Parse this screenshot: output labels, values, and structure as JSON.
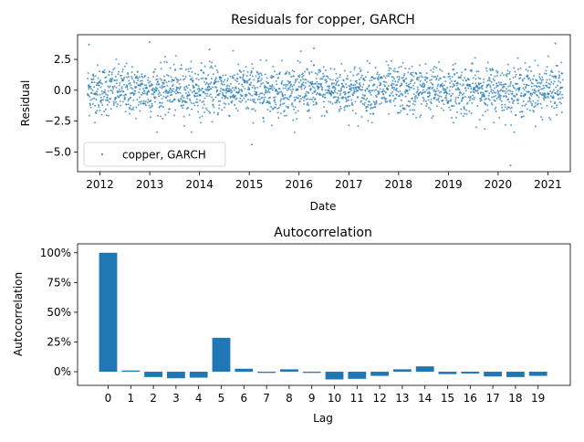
{
  "chart_data": [
    {
      "type": "scatter",
      "title": "Residuals for copper, GARCH",
      "xlabel": "Date",
      "ylabel": "Residual",
      "xlim": [
        2011.55,
        2021.45
      ],
      "ylim": [
        -6.6,
        4.5
      ],
      "x_ticks": [
        "2012",
        "2013",
        "2014",
        "2015",
        "2016",
        "2017",
        "2018",
        "2019",
        "2020",
        "2021"
      ],
      "x_tick_values": [
        2012,
        2013,
        2014,
        2015,
        2016,
        2017,
        2018,
        2019,
        2020,
        2021
      ],
      "y_ticks": [
        "2.5",
        "0.0",
        "−2.5",
        "−5.0"
      ],
      "y_tick_values": [
        2.5,
        0.0,
        -2.5,
        -5.0
      ],
      "x_range": [
        2011.75,
        2021.3
      ],
      "grid": false,
      "legend": {
        "placement": "lower-left",
        "entries": [
          "copper, GARCH"
        ]
      },
      "color": "#1f77b4",
      "series": [
        {
          "name": "copper, GARCH",
          "outliers": [
            {
              "x": 2020.25,
              "y": -6.1
            },
            {
              "x": 2015.05,
              "y": -4.4
            },
            {
              "x": 2021.15,
              "y": 3.8
            },
            {
              "x": 2013.0,
              "y": 3.9
            },
            {
              "x": 2011.78,
              "y": 3.7
            },
            {
              "x": 2014.2,
              "y": 3.3
            },
            {
              "x": 2016.3,
              "y": 3.4
            }
          ]
        }
      ]
    },
    {
      "type": "bar",
      "title": "Autocorrelation",
      "xlabel": "Lag",
      "ylabel": "Autocorrelation",
      "ylim": [
        -0.115,
        1.075
      ],
      "categories": [
        "0",
        "1",
        "2",
        "3",
        "4",
        "5",
        "6",
        "7",
        "8",
        "9",
        "10",
        "11",
        "12",
        "13",
        "14",
        "15",
        "16",
        "17",
        "18",
        "19"
      ],
      "values": [
        1.0,
        0.01,
        -0.045,
        -0.055,
        -0.05,
        0.285,
        0.025,
        -0.01,
        0.02,
        -0.01,
        -0.065,
        -0.06,
        -0.035,
        0.02,
        0.045,
        -0.02,
        -0.015,
        -0.04,
        -0.045,
        -0.035
      ],
      "y_ticks": [
        "100%",
        "75%",
        "50%",
        "25%",
        "0%"
      ],
      "y_tick_values": [
        1.0,
        0.75,
        0.5,
        0.25,
        0.0
      ],
      "grid": false,
      "color": "#1f77b4"
    }
  ]
}
